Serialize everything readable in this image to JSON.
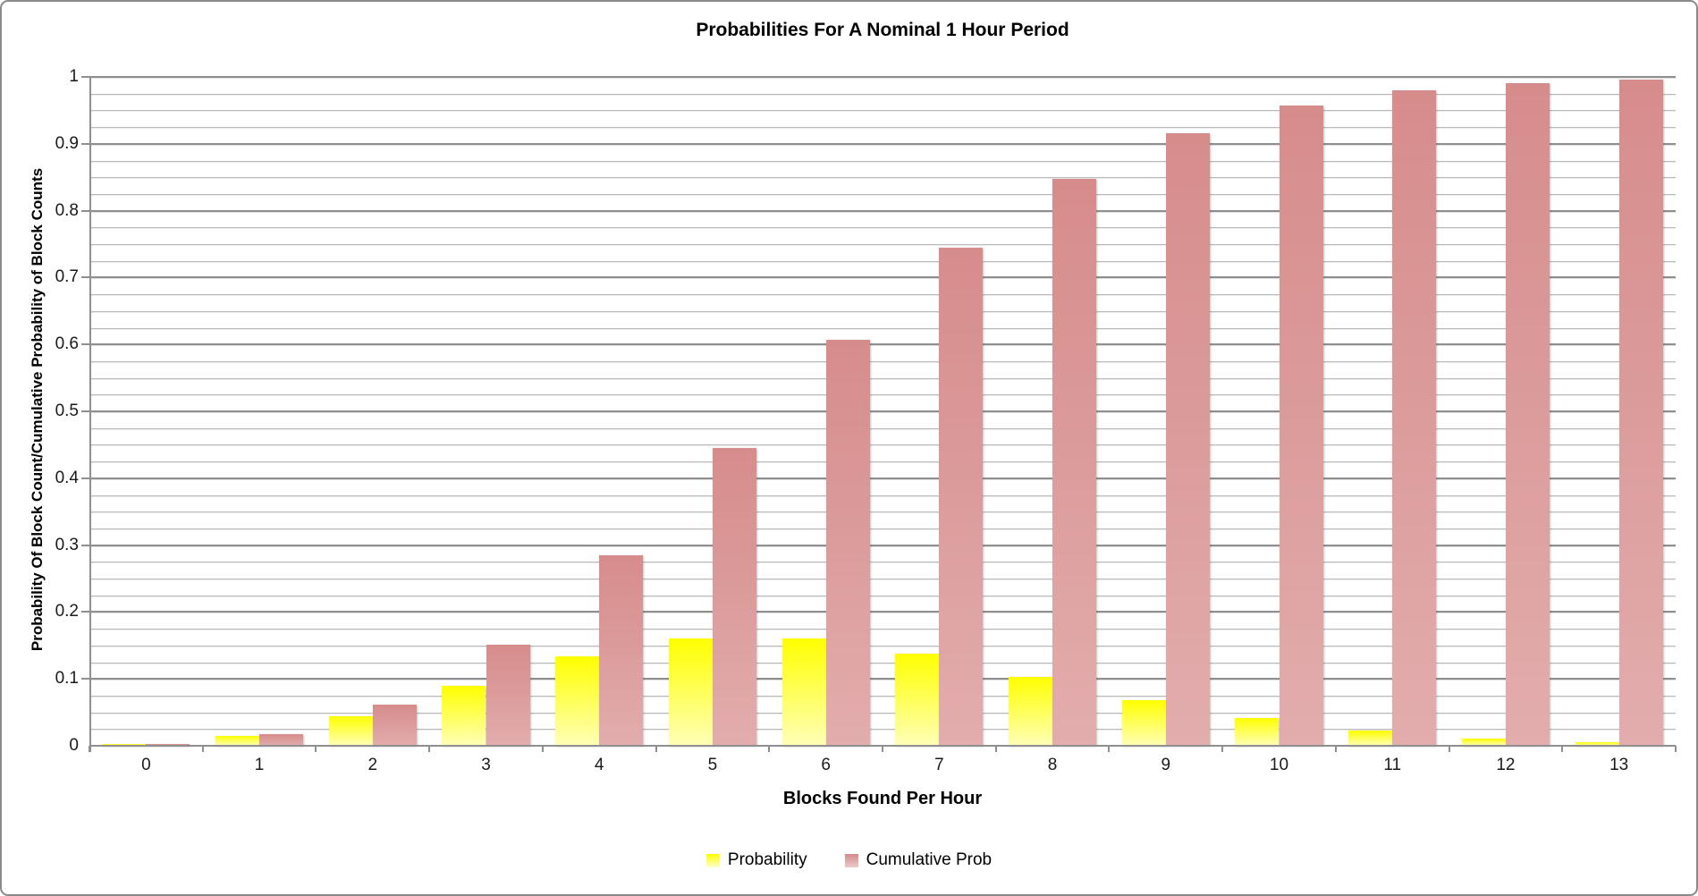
{
  "frame": {
    "background": "#ffffff",
    "border_color": "#8a8a8a"
  },
  "chart_data": {
    "type": "bar",
    "title": "Probabilities For A Nominal 1 Hour Period",
    "xlabel": "Blocks Found Per Hour",
    "ylabel": "Probability Of Block Count/Cumulative Probability of Block Counts",
    "categories": [
      "0",
      "1",
      "2",
      "3",
      "4",
      "5",
      "6",
      "7",
      "8",
      "9",
      "10",
      "11",
      "12",
      "13"
    ],
    "series": [
      {
        "name": "Probability",
        "values": [
          0.0025,
          0.0149,
          0.0446,
          0.0892,
          0.1339,
          0.1606,
          0.1606,
          0.1377,
          0.1033,
          0.0688,
          0.0413,
          0.0225,
          0.0113,
          0.0052
        ],
        "color_top": "#ffff00",
        "color_mid": "#ffff52",
        "color_bottom": "#ffffb8"
      },
      {
        "name": "Cumulative Prob",
        "values": [
          0.0025,
          0.0174,
          0.062,
          0.1512,
          0.2851,
          0.4457,
          0.6063,
          0.744,
          0.8472,
          0.9161,
          0.9574,
          0.9799,
          0.9912,
          0.9964
        ],
        "color_top": "#d78c8c",
        "color_mid": "#db9a9a",
        "color_bottom": "#e3adad"
      }
    ],
    "ylim": [
      0,
      1
    ],
    "y_major_step": 0.1,
    "y_minor_step": 0.025,
    "y_tick_labels": [
      "0",
      "0.1",
      "0.2",
      "0.3",
      "0.4",
      "0.5",
      "0.6",
      "0.7",
      "0.8",
      "0.9",
      "1"
    ],
    "grid": true,
    "legend_position": "bottom",
    "grid_major_color": "#8f8f8f",
    "grid_minor_color": "#bababa"
  }
}
